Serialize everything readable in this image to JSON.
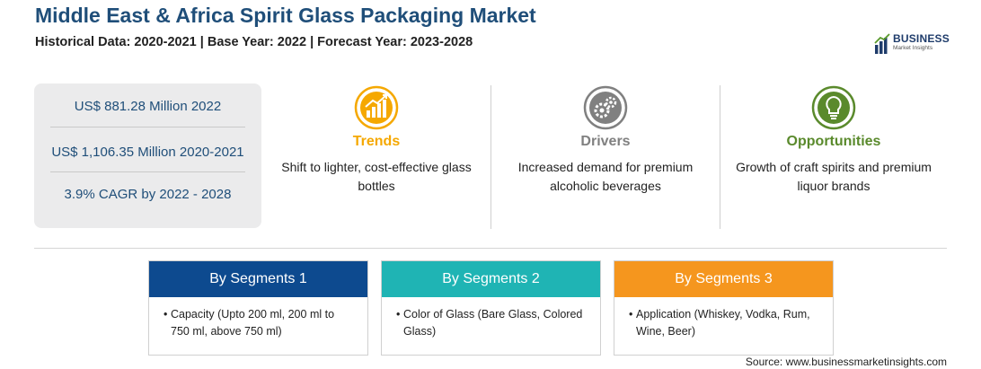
{
  "header": {
    "title": "Middle East & Africa Spirit Glass Packaging Market",
    "subtitle": "Historical Data: 2020-2021 | Base Year: 2022 | Forecast Year: 2023-2028"
  },
  "logo": {
    "word": "BUSINESS",
    "sub": "Market Insights"
  },
  "stats": [
    "US$ 881.28 Million 2022",
    "US$ 1,106.35 Million 2020-2021",
    "3.9% CAGR by 2022 - 2028"
  ],
  "features": [
    {
      "name": "Trends",
      "icon": "trend-chart-icon",
      "color": "#f5a800",
      "desc": "Shift to lighter, cost-effective glass bottles"
    },
    {
      "name": "Drivers",
      "icon": "gears-icon",
      "color": "#808080",
      "desc": "Increased demand for premium alcoholic beverages"
    },
    {
      "name": "Opportunities",
      "icon": "lightbulb-icon",
      "color": "#5a8a2c",
      "desc": "Growth of craft spirits and premium liquor brands"
    }
  ],
  "segments": [
    {
      "title": "By Segments 1",
      "color": "#0d4a8f",
      "item": "Capacity (Upto 200 ml, 200 ml to 750 ml, above 750 ml)"
    },
    {
      "title": "By Segments 2",
      "color": "#1fb4b4",
      "item": "Color of Glass (Bare Glass, Colored Glass)"
    },
    {
      "title": "By Segments 3",
      "color": "#f5961e",
      "item": "Application (Whiskey, Vodka, Rum, Wine, Beer)"
    }
  ],
  "source": "Source: www.businessmarketinsights.com"
}
